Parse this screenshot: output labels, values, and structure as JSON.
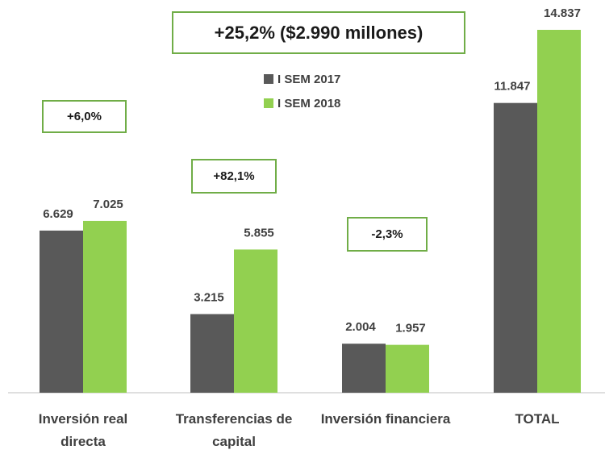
{
  "chart_data": {
    "type": "bar",
    "categories": [
      "Inversión real directa",
      "Transferencias de capital",
      "Inversión financiera",
      "TOTAL"
    ],
    "series": [
      {
        "name": "I SEM 2017",
        "color": "#595959",
        "values": [
          6629,
          3215,
          2004,
          11847
        ],
        "value_labels": [
          "6.629",
          "3.215",
          "2.004",
          "11.847"
        ]
      },
      {
        "name": "I SEM 2018",
        "color": "#92d050",
        "values": [
          7025,
          5855,
          1957,
          14837
        ],
        "value_labels": [
          "7.025",
          "5.855",
          "1.957",
          "14.837"
        ]
      }
    ],
    "annotations": [
      "+25,2% ($2.990 millones)",
      "+6,0%",
      "+82,1%",
      "-2,3%"
    ]
  }
}
